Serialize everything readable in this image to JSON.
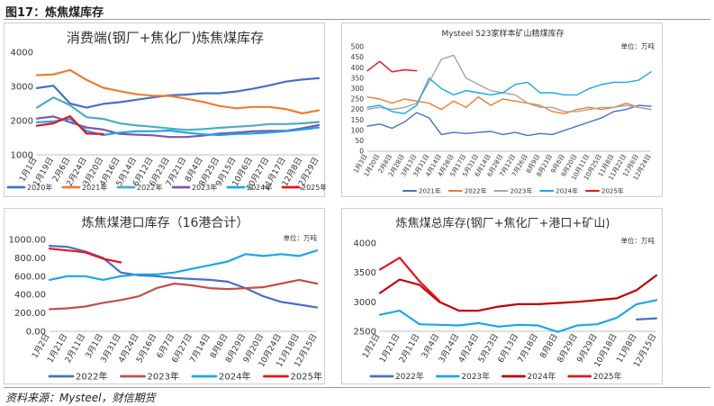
{
  "figure_title": "图17：炼焦煤库存",
  "source": "资料来源：Mysteel，财信期货",
  "chart_data": [
    {
      "type": "line",
      "title": "消费端(钢厂+焦化厂)炼焦煤库存",
      "unit": "",
      "ylim": [
        1000,
        4000
      ],
      "yticks": [
        1000,
        2000,
        3000,
        4000
      ],
      "x": [
        "1月1日",
        "1月19日",
        "2月6日",
        "2月24日",
        "3月20日",
        "4月16日",
        "5月14日",
        "6月12日",
        "6月23日",
        "7月21日",
        "8月4日",
        "8月25日",
        "9月15日",
        "10月6日",
        "10月27日",
        "11月17日",
        "12月8日",
        "12月29日"
      ],
      "series": [
        {
          "name": "2020年",
          "color": "#4472C4",
          "values": [
            2950,
            3020,
            2500,
            2380,
            2490,
            2540,
            2610,
            2680,
            2740,
            2760,
            2800,
            2800,
            2850,
            2930,
            3030,
            3140,
            3200,
            3240
          ]
        },
        {
          "name": "2021年",
          "color": "#ED7D31",
          "values": [
            3330,
            3350,
            3480,
            3190,
            2960,
            2860,
            2770,
            2730,
            2720,
            2640,
            2550,
            2430,
            2360,
            2400,
            2400,
            2340,
            2210,
            2300
          ]
        },
        {
          "name": "2022年",
          "color": "#4BACC6",
          "values": [
            2380,
            2680,
            2450,
            2100,
            2050,
            1920,
            1860,
            1820,
            1770,
            1730,
            1750,
            1790,
            1820,
            1850,
            1900,
            1900,
            1920,
            1960
          ]
        },
        {
          "name": "2023年",
          "color": "#7E57A8",
          "values": [
            2060,
            2120,
            1950,
            1800,
            1740,
            1610,
            1590,
            1570,
            1520,
            1520,
            1560,
            1620,
            1650,
            1690,
            1700,
            1700,
            1780,
            1870
          ]
        },
        {
          "name": "2024年",
          "color": "#1AA7E6",
          "values": [
            1950,
            1980,
            2050,
            1700,
            1580,
            1650,
            1690,
            1690,
            1710,
            1650,
            1600,
            1580,
            1610,
            1620,
            1650,
            1690,
            1740,
            1800
          ]
        },
        {
          "name": "2025年",
          "color": "#E8131B",
          "values": [
            1850,
            1920,
            2130,
            1620,
            1610,
            null,
            null,
            null,
            null,
            null,
            null,
            null,
            null,
            null,
            null,
            null,
            null,
            null
          ]
        }
      ]
    },
    {
      "type": "line",
      "title": "Mysteel 523家样本矿山精煤库存",
      "unit": "单位：万吨",
      "ylim": [
        0,
        500
      ],
      "yticks": [
        0,
        50,
        100,
        150,
        200,
        250,
        300,
        350,
        400,
        450,
        500
      ],
      "x": [
        "1月3日",
        "1月20日",
        "2月8日",
        "2月28日",
        "3月13日",
        "3月31日",
        "4月14日",
        "4月28日",
        "5月17日",
        "5月31日",
        "6月14日",
        "6月28日",
        "7月12日",
        "7月26日",
        "8月9日",
        "8月23日",
        "9月6日",
        "9月20日",
        "10月11日",
        "10月25日",
        "11月8日",
        "11月22日",
        "12月6日",
        "12月24日"
      ],
      "series": [
        {
          "name": "2021年",
          "color": "#4472C4",
          "values": [
            120,
            130,
            110,
            140,
            185,
            160,
            80,
            90,
            85,
            90,
            95,
            80,
            90,
            75,
            85,
            80,
            100,
            120,
            140,
            160,
            190,
            200,
            220,
            215
          ]
        },
        {
          "name": "2022年",
          "color": "#ED7D31",
          "values": [
            260,
            250,
            230,
            250,
            240,
            230,
            200,
            240,
            210,
            260,
            220,
            250,
            240,
            230,
            220,
            190,
            180,
            200,
            210,
            200,
            210,
            230,
            210,
            200
          ]
        },
        {
          "name": "2023年",
          "color": "#A5A5A5",
          "values": [
            200,
            210,
            200,
            210,
            230,
            330,
            440,
            460,
            350,
            320,
            290,
            280,
            270,
            230,
            210,
            210,
            190,
            190,
            200,
            210,
            210,
            220,
            210,
            200
          ]
        },
        {
          "name": "2024年",
          "color": "#1AA7E6",
          "values": [
            210,
            220,
            190,
            180,
            220,
            350,
            300,
            270,
            290,
            280,
            270,
            280,
            320,
            330,
            280,
            280,
            270,
            270,
            300,
            320,
            330,
            330,
            340,
            380
          ]
        },
        {
          "name": "2025年",
          "color": "#E8131B",
          "values": [
            385,
            430,
            380,
            390,
            385,
            null,
            null,
            null,
            null,
            null,
            null,
            null,
            null,
            null,
            null,
            null,
            null,
            null,
            null,
            null,
            null,
            null,
            null,
            null
          ]
        }
      ]
    },
    {
      "type": "line",
      "title": "炼焦煤港口库存（16港合计）",
      "unit": "单位：万吨",
      "ylim": [
        0,
        1000
      ],
      "yticks": [
        "0.00",
        "200.00",
        "400.00",
        "600.00",
        "800.00",
        "1000.00"
      ],
      "x": [
        "1月2日",
        "1月21日",
        "2月11日",
        "3月1日",
        "3月31日",
        "4月24日",
        "5月16日",
        "6月7日",
        "6月27日",
        "7月14日",
        "8月8日",
        "8月29日",
        "9月20日",
        "10月24日",
        "11月18日",
        "12月15日"
      ],
      "series": [
        {
          "name": "2022年",
          "color": "#4472C4",
          "values": [
            930,
            920,
            870,
            800,
            640,
            610,
            600,
            580,
            570,
            560,
            540,
            470,
            380,
            320,
            290,
            260
          ]
        },
        {
          "name": "2023年",
          "color": "#C0504D",
          "values": [
            240,
            250,
            270,
            310,
            340,
            380,
            470,
            520,
            500,
            470,
            460,
            470,
            480,
            520,
            560,
            520
          ]
        },
        {
          "name": "2024年",
          "color": "#1AA7E6",
          "values": [
            560,
            600,
            600,
            560,
            600,
            620,
            620,
            640,
            680,
            720,
            760,
            840,
            820,
            840,
            820,
            880
          ]
        },
        {
          "name": "2025年",
          "color": "#E8131B",
          "values": [
            900,
            880,
            860,
            790,
            750,
            null,
            null,
            null,
            null,
            null,
            null,
            null,
            null,
            null,
            null,
            null
          ]
        }
      ]
    },
    {
      "type": "line",
      "title": "炼焦煤总库存(钢厂+焦化厂+港口+矿山)",
      "unit": "单位：万吨",
      "ylim": [
        2500,
        4000
      ],
      "yticks": [
        2500,
        3000,
        3500,
        4000
      ],
      "x": [
        "1月2日",
        "1月21日",
        "2月11日",
        "3月4日",
        "3月24日",
        "4月24日",
        "5月23日",
        "6月13日",
        "7月18日",
        "8月8日",
        "8月29日",
        "9月29日",
        "10月18日",
        "11月8日",
        "12月15日"
      ],
      "series": [
        {
          "name": "2022年",
          "color": "#4472C4",
          "values": [
            null,
            null,
            null,
            null,
            null,
            null,
            null,
            null,
            null,
            null,
            null,
            null,
            null,
            2700,
            2720
          ]
        },
        {
          "name": "2023年",
          "color": "#1AA7E6",
          "values": [
            2780,
            2850,
            2620,
            2610,
            2600,
            2640,
            2580,
            2610,
            2600,
            2490,
            2600,
            2620,
            2730,
            2960,
            3030
          ]
        },
        {
          "name": "2024年",
          "color": "#C00000",
          "values": [
            3150,
            3380,
            3290,
            3000,
            2850,
            2850,
            2920,
            2960,
            2960,
            2980,
            3000,
            3030,
            3060,
            3200,
            3450
          ]
        },
        {
          "name": "2025年",
          "color": "#E8131B",
          "values": [
            3550,
            3750,
            3350,
            3020,
            null,
            null,
            null,
            null,
            null,
            null,
            null,
            null,
            null,
            null,
            null
          ]
        }
      ]
    }
  ]
}
